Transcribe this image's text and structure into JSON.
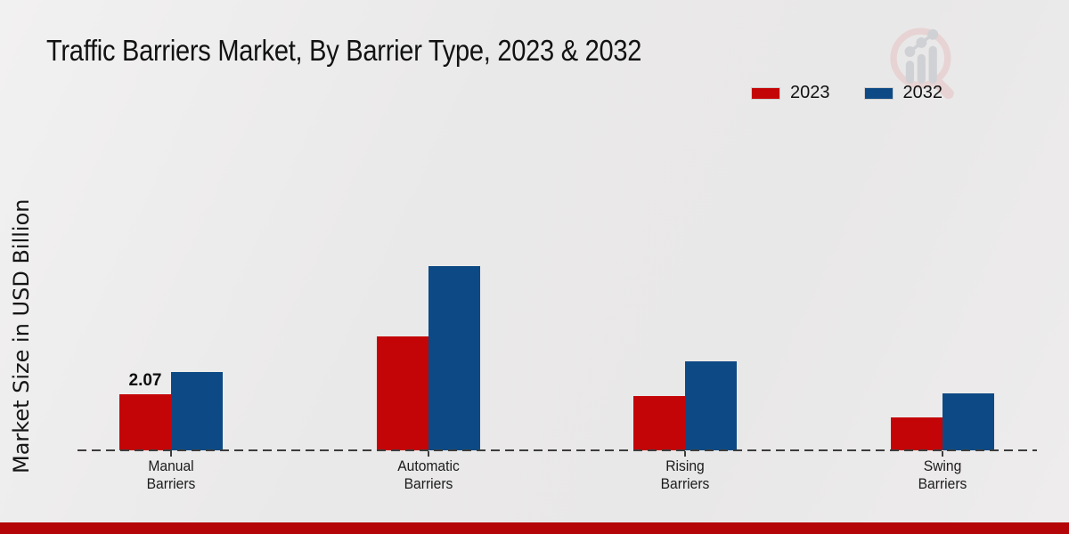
{
  "title": "Traffic Barriers Market, By Barrier Type, 2023 & 2032",
  "y_axis_label": "Market Size in USD Billion",
  "legend": [
    {
      "label": "2023",
      "color": "#c40508"
    },
    {
      "label": "2032",
      "color": "#0d4a85"
    }
  ],
  "chart_data": {
    "type": "bar",
    "title": "Traffic Barriers Market, By Barrier Type, 2023 & 2032",
    "categories": [
      "Manual Barriers",
      "Automatic Barriers",
      "Rising Barriers",
      "Swing Barriers"
    ],
    "series": [
      {
        "name": "2023",
        "color": "#c40508",
        "values": [
          2.07,
          4.2,
          2.0,
          1.2
        ]
      },
      {
        "name": "2032",
        "color": "#0d4a85",
        "values": [
          2.9,
          6.8,
          3.3,
          2.1
        ]
      }
    ],
    "data_labels": [
      {
        "series": "2023",
        "category": "Manual Barriers",
        "text": "2.07"
      }
    ],
    "xlabel": "",
    "ylabel": "Market Size in USD Billion",
    "ylim": [
      0,
      7.5
    ],
    "grid": false,
    "y_axis_ticks_visible": false,
    "legend_position": "top-right",
    "baseline_style": "dashed"
  },
  "colors": {
    "footer_bar": "#b40608",
    "baseline": "#3d3d3d",
    "background": "#ebeaea"
  }
}
